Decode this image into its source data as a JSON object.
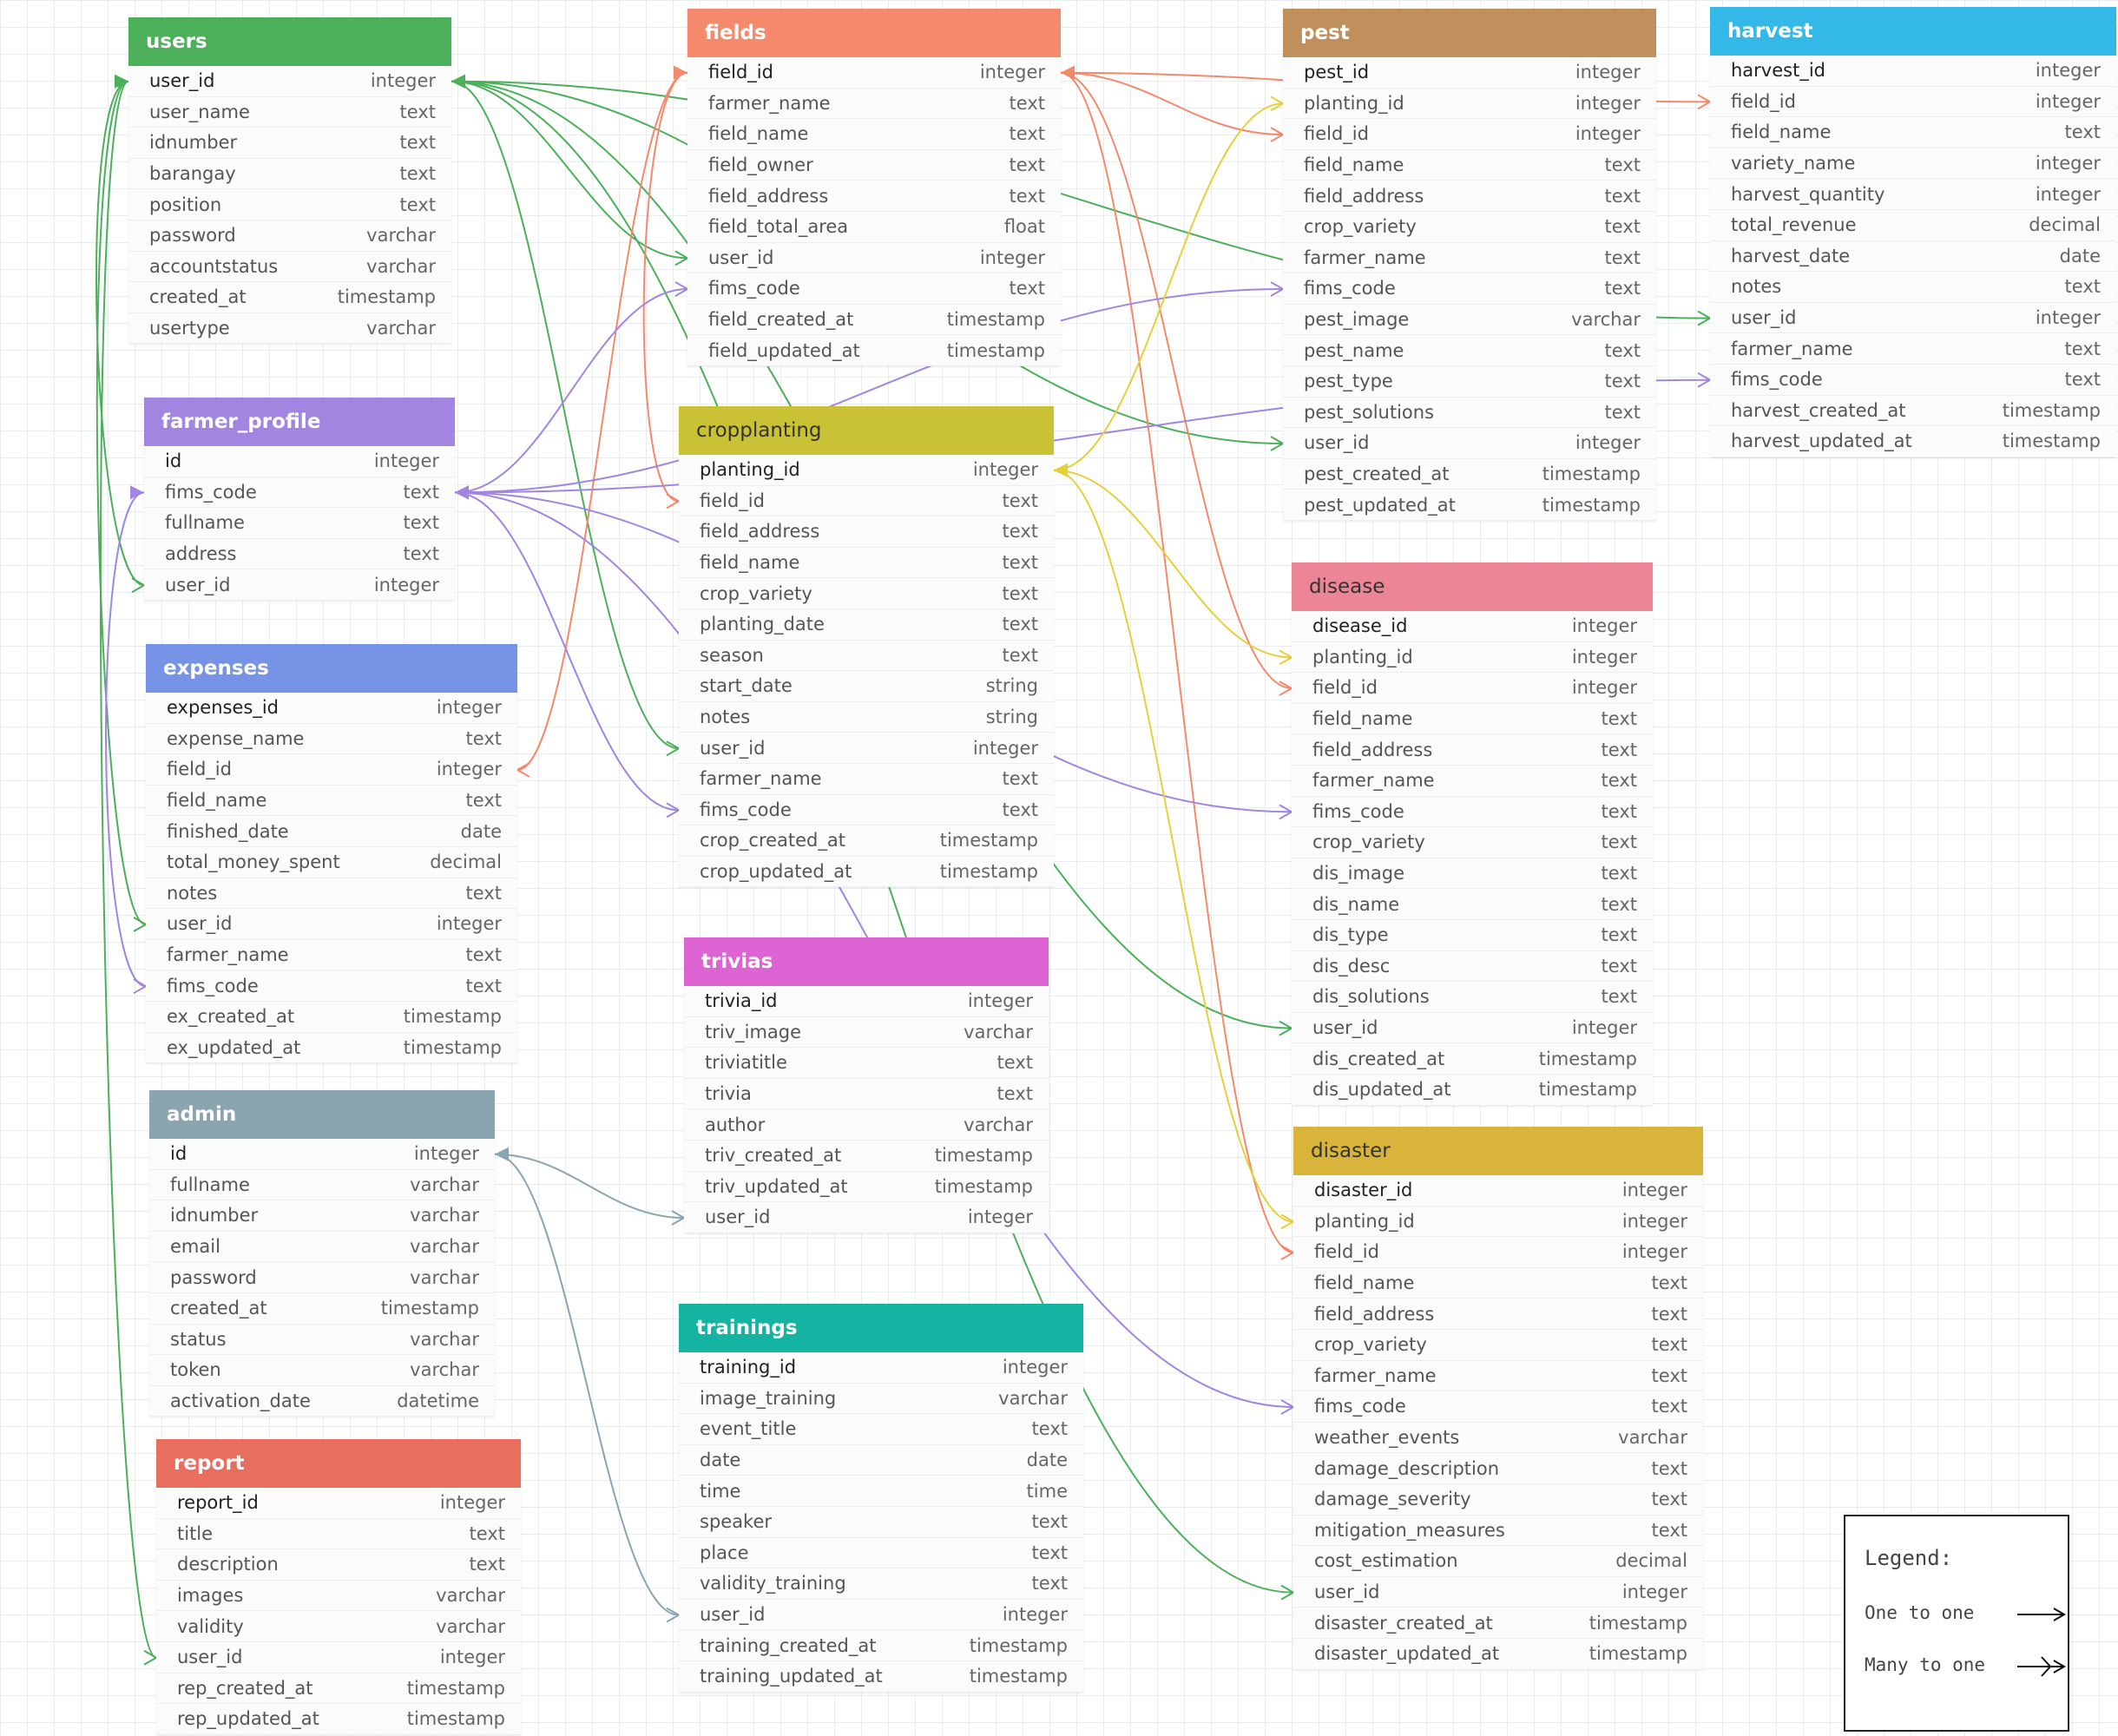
{
  "legend": {
    "title": "Legend:",
    "one_to_one": "One to one",
    "many_to_one": "Many to one"
  },
  "tables": [
    {
      "id": "users",
      "title": "users",
      "color": "#4caf5a",
      "cols": [
        [
          "user_id",
          "integer"
        ],
        [
          "user_name",
          "text"
        ],
        [
          "idnumber",
          "text"
        ],
        [
          "barangay",
          "text"
        ],
        [
          "position",
          "text"
        ],
        [
          "password",
          "varchar"
        ],
        [
          "accountstatus",
          "varchar"
        ],
        [
          "created_at",
          "timestamp"
        ],
        [
          "usertype",
          "varchar"
        ]
      ]
    },
    {
      "id": "fields",
      "title": "fields",
      "color": "#f4896b",
      "cols": [
        [
          "field_id",
          "integer"
        ],
        [
          "farmer_name",
          "text"
        ],
        [
          "field_name",
          "text"
        ],
        [
          "field_owner",
          "text"
        ],
        [
          "field_address",
          "text"
        ],
        [
          "field_total_area",
          "float"
        ],
        [
          "user_id",
          "integer"
        ],
        [
          "fims_code",
          "text"
        ],
        [
          "field_created_at",
          "timestamp"
        ],
        [
          "field_updated_at",
          "timestamp"
        ]
      ]
    },
    {
      "id": "pest",
      "title": "pest",
      "color": "#c08f5e",
      "cols": [
        [
          "pest_id",
          "integer"
        ],
        [
          "planting_id",
          "integer"
        ],
        [
          "field_id",
          "integer"
        ],
        [
          "field_name",
          "text"
        ],
        [
          "field_address",
          "text"
        ],
        [
          "crop_variety",
          "text"
        ],
        [
          "farmer_name",
          "text"
        ],
        [
          "fims_code",
          "text"
        ],
        [
          "pest_image",
          "varchar"
        ],
        [
          "pest_name",
          "text"
        ],
        [
          "pest_type",
          "text"
        ],
        [
          "pest_solutions",
          "text"
        ],
        [
          "user_id",
          "integer"
        ],
        [
          "pest_created_at",
          "timestamp"
        ],
        [
          "pest_updated_at",
          "timestamp"
        ]
      ]
    },
    {
      "id": "harvest",
      "title": "harvest",
      "color": "#33b8e8",
      "cols": [
        [
          "harvest_id",
          "integer"
        ],
        [
          "field_id",
          "integer"
        ],
        [
          "field_name",
          "text"
        ],
        [
          "variety_name",
          "integer"
        ],
        [
          "harvest_quantity",
          "integer"
        ],
        [
          "total_revenue",
          "decimal"
        ],
        [
          "harvest_date",
          "date"
        ],
        [
          "notes",
          "text"
        ],
        [
          "user_id",
          "integer"
        ],
        [
          "farmer_name",
          "text"
        ],
        [
          "fims_code",
          "text"
        ],
        [
          "harvest_created_at",
          "timestamp"
        ],
        [
          "harvest_updated_at",
          "timestamp"
        ]
      ]
    },
    {
      "id": "farmer_profile",
      "title": "farmer_profile",
      "color": "#a285e0",
      "cols": [
        [
          "id",
          "integer"
        ],
        [
          "fims_code",
          "text"
        ],
        [
          "fullname",
          "text"
        ],
        [
          "address",
          "text"
        ],
        [
          "user_id",
          "integer"
        ]
      ]
    },
    {
      "id": "cropplanting",
      "title": "cropplanting",
      "color": "#c9c234",
      "dark": true,
      "cols": [
        [
          "planting_id",
          "integer"
        ],
        [
          "field_id",
          "text"
        ],
        [
          "field_address",
          "text"
        ],
        [
          "field_name",
          "text"
        ],
        [
          "crop_variety",
          "text"
        ],
        [
          "planting_date",
          "text"
        ],
        [
          "season",
          "text"
        ],
        [
          "start_date",
          "string"
        ],
        [
          "notes",
          "string"
        ],
        [
          "user_id",
          "integer"
        ],
        [
          "farmer_name",
          "text"
        ],
        [
          "fims_code",
          "text"
        ],
        [
          "crop_created_at",
          "timestamp"
        ],
        [
          "crop_updated_at",
          "timestamp"
        ]
      ]
    },
    {
      "id": "disease",
      "title": "disease",
      "color": "#ec8596",
      "dark": true,
      "cols": [
        [
          "disease_id",
          "integer"
        ],
        [
          "planting_id",
          "integer"
        ],
        [
          "field_id",
          "integer"
        ],
        [
          "field_name",
          "text"
        ],
        [
          "field_address",
          "text"
        ],
        [
          "farmer_name",
          "text"
        ],
        [
          "fims_code",
          "text"
        ],
        [
          "crop_variety",
          "text"
        ],
        [
          "dis_image",
          "text"
        ],
        [
          "dis_name",
          "text"
        ],
        [
          "dis_type",
          "text"
        ],
        [
          "dis_desc",
          "text"
        ],
        [
          "dis_solutions",
          "text"
        ],
        [
          "user_id",
          "integer"
        ],
        [
          "dis_created_at",
          "timestamp"
        ],
        [
          "dis_updated_at",
          "timestamp"
        ]
      ]
    },
    {
      "id": "expenses",
      "title": "expenses",
      "color": "#7693e6",
      "cols": [
        [
          "expenses_id",
          "integer"
        ],
        [
          "expense_name",
          "text"
        ],
        [
          "field_id",
          "integer"
        ],
        [
          "field_name",
          "text"
        ],
        [
          "finished_date",
          "date"
        ],
        [
          "total_money_spent",
          "decimal"
        ],
        [
          "notes",
          "text"
        ],
        [
          "user_id",
          "integer"
        ],
        [
          "farmer_name",
          "text"
        ],
        [
          "fims_code",
          "text"
        ],
        [
          "ex_created_at",
          "timestamp"
        ],
        [
          "ex_updated_at",
          "timestamp"
        ]
      ]
    },
    {
      "id": "trivias",
      "title": "trivias",
      "color": "#de64d4",
      "cols": [
        [
          "trivia_id",
          "integer"
        ],
        [
          "triv_image",
          "varchar"
        ],
        [
          "triviatitle",
          "text"
        ],
        [
          "trivia",
          "text"
        ],
        [
          "author",
          "varchar"
        ],
        [
          "triv_created_at",
          "timestamp"
        ],
        [
          "triv_updated_at",
          "timestamp"
        ],
        [
          "user_id",
          "integer"
        ]
      ]
    },
    {
      "id": "admin",
      "title": "admin",
      "color": "#8aa4b0",
      "cols": [
        [
          "id",
          "integer"
        ],
        [
          "fullname",
          "varchar"
        ],
        [
          "idnumber",
          "varchar"
        ],
        [
          "email",
          "varchar"
        ],
        [
          "password",
          "varchar"
        ],
        [
          "created_at",
          "timestamp"
        ],
        [
          "status",
          "varchar"
        ],
        [
          "token",
          "varchar"
        ],
        [
          "activation_date",
          "datetime"
        ]
      ]
    },
    {
      "id": "disaster",
      "title": "disaster",
      "color": "#d8b53a",
      "dark": true,
      "cols": [
        [
          "disaster_id",
          "integer"
        ],
        [
          "planting_id",
          "integer"
        ],
        [
          "field_id",
          "integer"
        ],
        [
          "field_name",
          "text"
        ],
        [
          "field_address",
          "text"
        ],
        [
          "crop_variety",
          "text"
        ],
        [
          "farmer_name",
          "text"
        ],
        [
          "fims_code",
          "text"
        ],
        [
          "weather_events",
          "varchar"
        ],
        [
          "damage_description",
          "text"
        ],
        [
          "damage_severity",
          "text"
        ],
        [
          "mitigation_measures",
          "text"
        ],
        [
          "cost_estimation",
          "decimal"
        ],
        [
          "user_id",
          "integer"
        ],
        [
          "disaster_created_at",
          "timestamp"
        ],
        [
          "disaster_updated_at",
          "timestamp"
        ]
      ]
    },
    {
      "id": "trainings",
      "title": "trainings",
      "color": "#15b3a1",
      "cols": [
        [
          "training_id",
          "integer"
        ],
        [
          "image_training",
          "varchar"
        ],
        [
          "event_title",
          "text"
        ],
        [
          "date",
          "date"
        ],
        [
          "time",
          "time"
        ],
        [
          "speaker",
          "text"
        ],
        [
          "place",
          "text"
        ],
        [
          "validity_training",
          "text"
        ],
        [
          "user_id",
          "integer"
        ],
        [
          "training_created_at",
          "timestamp"
        ],
        [
          "training_updated_at",
          "timestamp"
        ]
      ]
    },
    {
      "id": "report",
      "title": "report",
      "color": "#e86e5e",
      "cols": [
        [
          "report_id",
          "integer"
        ],
        [
          "title",
          "text"
        ],
        [
          "description",
          "text"
        ],
        [
          "images",
          "varchar"
        ],
        [
          "validity",
          "varchar"
        ],
        [
          "user_id",
          "integer"
        ],
        [
          "rep_created_at",
          "timestamp"
        ],
        [
          "rep_updated_at",
          "timestamp"
        ]
      ]
    }
  ],
  "relations": [
    {
      "from": "fields.user_id",
      "to": "users.user_id",
      "color": "#4caf5a"
    },
    {
      "from": "farmer_profile.user_id",
      "to": "users.user_id",
      "color": "#4caf5a"
    },
    {
      "from": "expenses.user_id",
      "to": "users.user_id",
      "color": "#4caf5a"
    },
    {
      "from": "report.user_id",
      "to": "users.user_id",
      "color": "#4caf5a"
    },
    {
      "from": "cropplanting.user_id",
      "to": "users.user_id",
      "color": "#4caf5a"
    },
    {
      "from": "pest.user_id",
      "to": "users.user_id",
      "color": "#4caf5a"
    },
    {
      "from": "harvest.user_id",
      "to": "users.user_id",
      "color": "#4caf5a"
    },
    {
      "from": "disease.user_id",
      "to": "users.user_id",
      "color": "#4caf5a"
    },
    {
      "from": "disaster.user_id",
      "to": "users.user_id",
      "color": "#4caf5a"
    },
    {
      "from": "expenses.field_id",
      "to": "fields.field_id",
      "color": "#f4896b"
    },
    {
      "from": "cropplanting.field_id",
      "to": "fields.field_id",
      "color": "#f4896b"
    },
    {
      "from": "pest.field_id",
      "to": "fields.field_id",
      "color": "#f4896b"
    },
    {
      "from": "harvest.field_id",
      "to": "fields.field_id",
      "color": "#f4896b"
    },
    {
      "from": "disease.field_id",
      "to": "fields.field_id",
      "color": "#f4896b"
    },
    {
      "from": "disaster.field_id",
      "to": "fields.field_id",
      "color": "#f4896b"
    },
    {
      "from": "fields.fims_code",
      "to": "farmer_profile.fims_code",
      "color": "#a285e0"
    },
    {
      "from": "expenses.fims_code",
      "to": "farmer_profile.fims_code",
      "color": "#a285e0"
    },
    {
      "from": "cropplanting.fims_code",
      "to": "farmer_profile.fims_code",
      "color": "#a285e0"
    },
    {
      "from": "pest.fims_code",
      "to": "farmer_profile.fims_code",
      "color": "#a285e0"
    },
    {
      "from": "harvest.fims_code",
      "to": "farmer_profile.fims_code",
      "color": "#a285e0"
    },
    {
      "from": "disease.fims_code",
      "to": "farmer_profile.fims_code",
      "color": "#a285e0"
    },
    {
      "from": "disaster.fims_code",
      "to": "farmer_profile.fims_code",
      "color": "#a285e0"
    },
    {
      "from": "pest.planting_id",
      "to": "cropplanting.planting_id",
      "color": "#e7cf3a"
    },
    {
      "from": "disease.planting_id",
      "to": "cropplanting.planting_id",
      "color": "#e7cf3a"
    },
    {
      "from": "disaster.planting_id",
      "to": "cropplanting.planting_id",
      "color": "#e7cf3a"
    },
    {
      "from": "trivias.user_id",
      "to": "admin.id",
      "color": "#8aa4b0"
    },
    {
      "from": "trainings.user_id",
      "to": "admin.id",
      "color": "#8aa4b0"
    }
  ]
}
